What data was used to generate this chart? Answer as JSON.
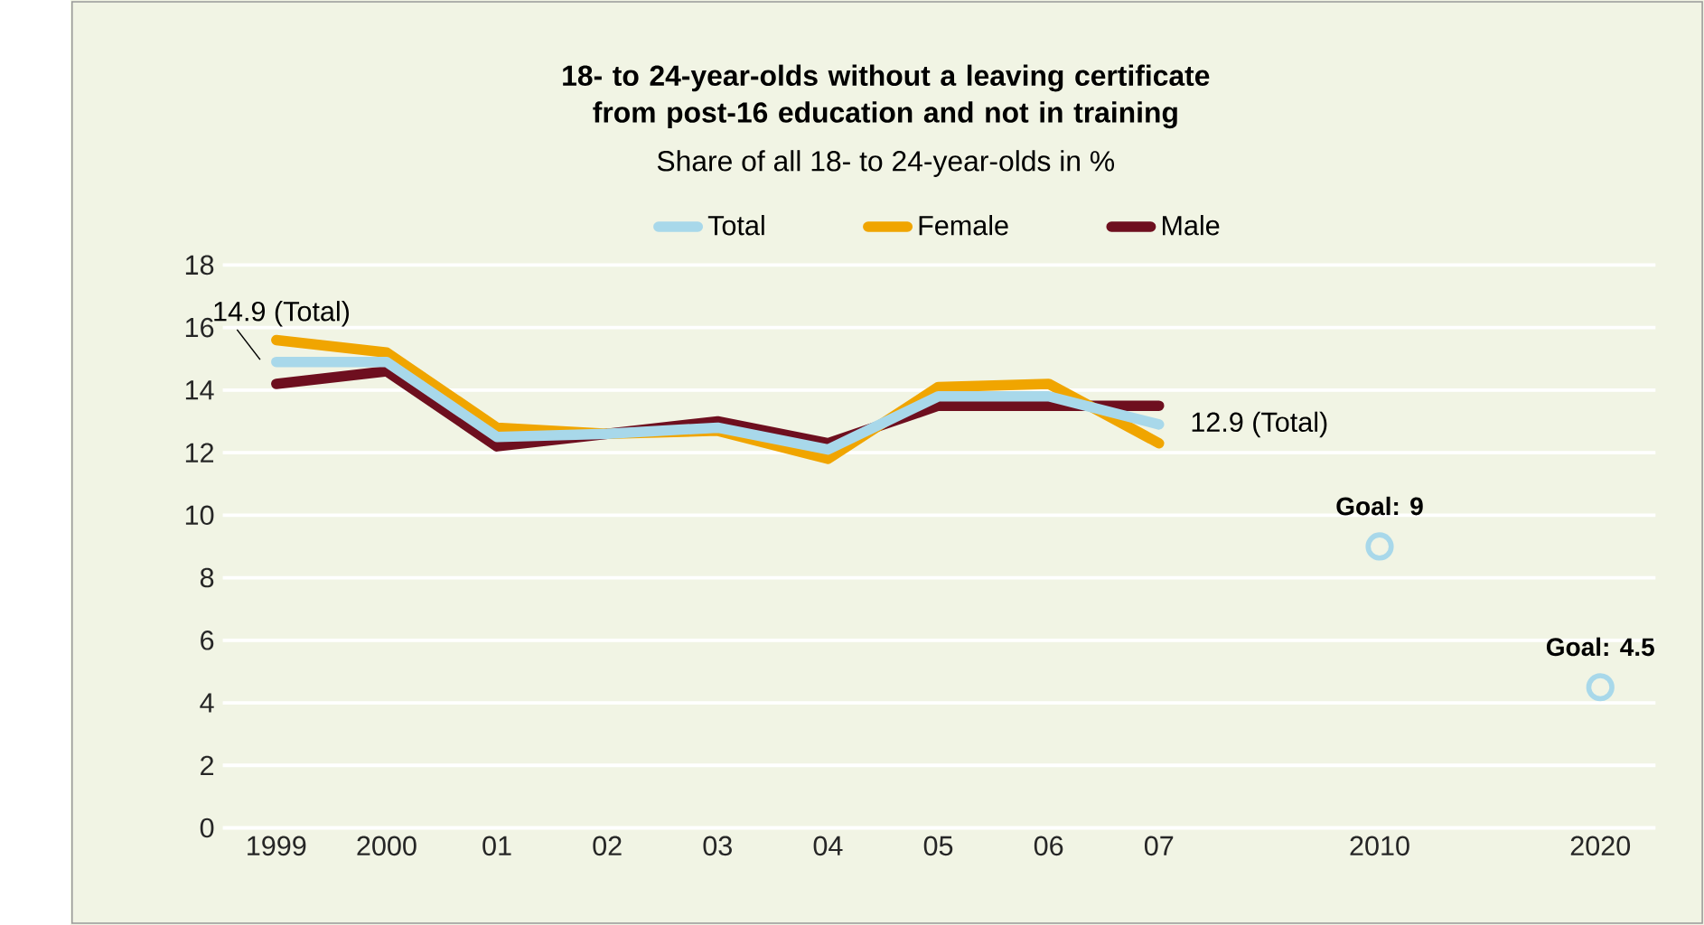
{
  "chart_data": {
    "type": "line",
    "title": "18- to 24-year-olds without a leaving certificate from post-16 education and not in training",
    "subtitle": "Share of all 18- to 24-year-olds in %",
    "categories": [
      "1999",
      "2000",
      "01",
      "02",
      "03",
      "04",
      "05",
      "06",
      "07",
      null,
      "2010",
      null,
      "2020"
    ],
    "series": [
      {
        "name": "Total",
        "color": "#a8d8ea",
        "values": [
          14.9,
          14.9,
          12.5,
          12.6,
          12.8,
          12.1,
          13.8,
          13.8,
          12.9,
          null,
          null,
          null,
          null
        ]
      },
      {
        "name": "Female",
        "color": "#f0a500",
        "values": [
          15.6,
          15.2,
          12.8,
          12.6,
          12.7,
          11.8,
          14.1,
          14.2,
          12.3,
          null,
          null,
          null,
          null
        ]
      },
      {
        "name": "Male",
        "color": "#6e0f1f",
        "values": [
          14.2,
          14.6,
          12.2,
          12.6,
          13.0,
          12.3,
          13.5,
          13.5,
          13.5,
          null,
          null,
          null,
          null
        ]
      },
      {
        "type": "scatter",
        "marker": "circle",
        "color": "#a8d8ea",
        "values": [
          null,
          null,
          null,
          null,
          null,
          null,
          null,
          null,
          null,
          null,
          9,
          null,
          4.5
        ]
      }
    ],
    "annotations": [
      {
        "text": "14.9 (Total)",
        "x": "1999",
        "y": 14.9
      },
      {
        "text": "12.9 (Total)",
        "x": "07",
        "y": 12.9
      },
      {
        "text": "Goal: 9",
        "x": "2010",
        "y": 9
      },
      {
        "text": "Goal: 4.5",
        "x": "2020",
        "y": 4.5
      }
    ],
    "ylim": [
      0,
      18
    ],
    "yticks": [
      0,
      2,
      4,
      6,
      8,
      10,
      12,
      14,
      16,
      18
    ],
    "grid": "y",
    "legend": "top",
    "line_style": "solid",
    "marker": "none"
  }
}
